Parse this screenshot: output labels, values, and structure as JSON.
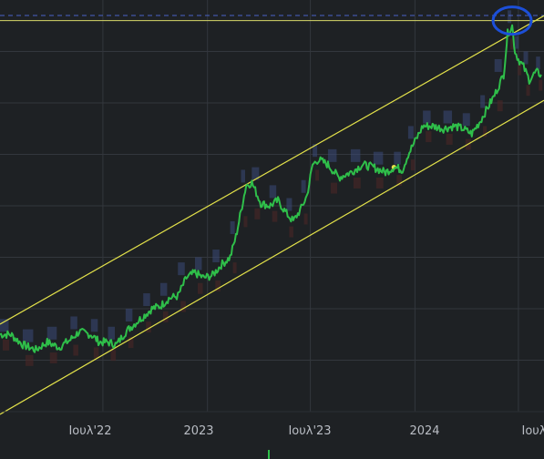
{
  "chart_data": {
    "type": "line",
    "title": "",
    "xlabel": "",
    "ylabel": "",
    "x_tick_labels": [
      "Ιουλ'22",
      "2023",
      "Ιουλ'23",
      "2024",
      "Ιουλ"
    ],
    "x_range": [
      "2022-01-01",
      "2024-08-15"
    ],
    "grid": true,
    "series": [
      {
        "color": "#2fbf4a",
        "points": [
          [
            "2022-01-01",
            30
          ],
          [
            "2022-01-20",
            30
          ],
          [
            "2022-02-10",
            26
          ],
          [
            "2022-03-05",
            24
          ],
          [
            "2022-03-25",
            27
          ],
          [
            "2022-04-15",
            25
          ],
          [
            "2022-05-05",
            28
          ],
          [
            "2022-05-20",
            31
          ],
          [
            "2022-06-10",
            30
          ],
          [
            "2022-06-25",
            27
          ],
          [
            "2022-07-10",
            27
          ],
          [
            "2022-07-25",
            26
          ],
          [
            "2022-08-10",
            31
          ],
          [
            "2022-08-25",
            34
          ],
          [
            "2022-09-10",
            37
          ],
          [
            "2022-09-25",
            40
          ],
          [
            "2022-10-10",
            41
          ],
          [
            "2022-10-25",
            44
          ],
          [
            "2022-11-10",
            45
          ],
          [
            "2022-11-25",
            52
          ],
          [
            "2022-12-10",
            54
          ],
          [
            "2022-12-25",
            52
          ],
          [
            "2023-01-10",
            53
          ],
          [
            "2023-01-25",
            57
          ],
          [
            "2023-02-10",
            60
          ],
          [
            "2023-02-20",
            68
          ],
          [
            "2023-03-01",
            78
          ],
          [
            "2023-03-10",
            88
          ],
          [
            "2023-03-20",
            89
          ],
          [
            "2023-04-05",
            81
          ],
          [
            "2023-04-20",
            80
          ],
          [
            "2023-05-05",
            82
          ],
          [
            "2023-05-20",
            77
          ],
          [
            "2023-06-01",
            74
          ],
          [
            "2023-06-15",
            79
          ],
          [
            "2023-06-25",
            84
          ],
          [
            "2023-07-05",
            96
          ],
          [
            "2023-07-15",
            98
          ],
          [
            "2023-08-01",
            96
          ],
          [
            "2023-08-20",
            91
          ],
          [
            "2023-09-10",
            93
          ],
          [
            "2023-10-01",
            96
          ],
          [
            "2023-10-20",
            95
          ],
          [
            "2023-11-10",
            93
          ],
          [
            "2023-11-25",
            95
          ],
          [
            "2023-12-10",
            94
          ],
          [
            "2023-12-20",
            100
          ],
          [
            "2024-01-01",
            105
          ],
          [
            "2024-01-15",
            111
          ],
          [
            "2024-02-01",
            111
          ],
          [
            "2024-02-20",
            110
          ],
          [
            "2024-03-10",
            111
          ],
          [
            "2024-03-25",
            110
          ],
          [
            "2024-04-10",
            108
          ],
          [
            "2024-04-25",
            113
          ],
          [
            "2024-05-05",
            117
          ],
          [
            "2024-05-20",
            123
          ],
          [
            "2024-06-05",
            131
          ],
          [
            "2024-06-12",
            147
          ],
          [
            "2024-06-20",
            150
          ],
          [
            "2024-06-25",
            140
          ],
          [
            "2024-07-01",
            137
          ],
          [
            "2024-07-10",
            134
          ],
          [
            "2024-07-20",
            129
          ],
          [
            "2024-08-01",
            132
          ],
          [
            "2024-08-10",
            131
          ]
        ]
      }
    ],
    "channel": {
      "color": "#e3e24a",
      "upper": [
        [
          "2022-01-01",
          34
        ],
        [
          "2024-07-15",
          150
        ]
      ],
      "lower": [
        [
          "2022-08-01",
          26
        ],
        [
          "2024-08-15",
          121
        ]
      ],
      "markers": [
        [
          "2023-11-25",
          95
        ]
      ]
    },
    "reference_lines": [
      {
        "style": "solid",
        "color": "#d8d86a",
        "y": 152
      },
      {
        "style": "dashed",
        "color": "#4a63c8",
        "y": 154
      }
    ],
    "annotation": {
      "shape": "circle",
      "color": "#1c4fd8",
      "at": [
        "2024-06-20",
        152
      ]
    },
    "colors": {
      "background": "#1e2124",
      "grid": "#33373d",
      "volume_profile_up": "#3a4a78",
      "volume_profile_down": "#4a2626"
    }
  }
}
